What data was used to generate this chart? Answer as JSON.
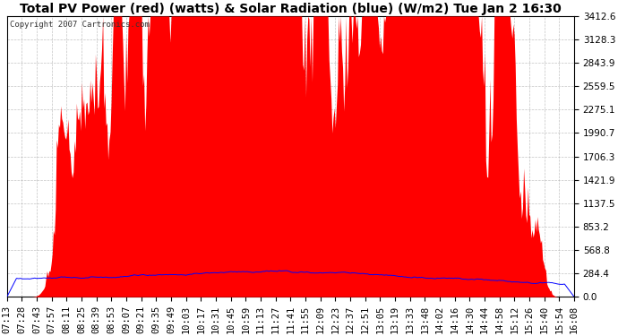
{
  "title": "Total PV Power (red) (watts) & Solar Radiation (blue) (W/m2) Tue Jan 2 16:30",
  "copyright_text": "Copyright 2007 Cartronics.com",
  "y_ticks": [
    0.0,
    284.4,
    568.8,
    853.2,
    1137.5,
    1421.9,
    1706.3,
    1990.7,
    2275.1,
    2559.5,
    2843.9,
    3128.3,
    3412.6
  ],
  "x_labels": [
    "07:13",
    "07:28",
    "07:43",
    "07:57",
    "08:11",
    "08:25",
    "08:39",
    "08:53",
    "09:07",
    "09:21",
    "09:35",
    "09:49",
    "10:03",
    "10:17",
    "10:31",
    "10:45",
    "10:59",
    "11:13",
    "11:27",
    "11:41",
    "11:55",
    "12:09",
    "12:23",
    "12:37",
    "12:51",
    "13:05",
    "13:19",
    "13:33",
    "13:48",
    "14:02",
    "14:16",
    "14:30",
    "14:44",
    "14:58",
    "15:12",
    "15:26",
    "15:40",
    "15:54",
    "16:08"
  ],
  "y_max": 3412.6,
  "y_min": 0.0,
  "bg_color": "#ffffff",
  "plot_bg_color": "#ffffff",
  "grid_color": "#aaaaaa",
  "red_color": "#ff0000",
  "blue_color": "#0000ff",
  "title_fontsize": 10,
  "tick_fontsize": 7.5,
  "copyright_fontsize": 6.5
}
